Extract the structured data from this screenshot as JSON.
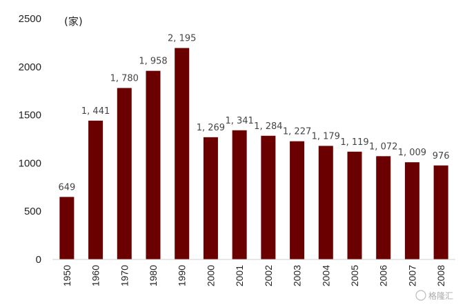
{
  "chart_data": {
    "type": "bar",
    "unit_label": "(家)",
    "categories": [
      "1950",
      "1960",
      "1970",
      "1980",
      "1990",
      "2000",
      "2001",
      "2002",
      "2003",
      "2004",
      "2005",
      "2006",
      "2007",
      "2008"
    ],
    "values": [
      649,
      1441,
      1780,
      1958,
      2195,
      1269,
      1341,
      1284,
      1227,
      1179,
      1119,
      1072,
      1009,
      976
    ],
    "data_labels": [
      "649",
      "1, 441",
      "1, 780",
      "1, 958",
      "2, 195",
      "1, 269",
      "1, 341",
      "1, 284",
      "1, 227",
      "1, 179",
      "1, 119",
      "1, 072",
      "1, 009",
      "976"
    ],
    "ylim": [
      0,
      2500
    ],
    "yticks": [
      0,
      500,
      1000,
      1500,
      2000,
      2500
    ],
    "grid": false,
    "bar_color": "#6b0000"
  },
  "watermark": "格隆汇"
}
